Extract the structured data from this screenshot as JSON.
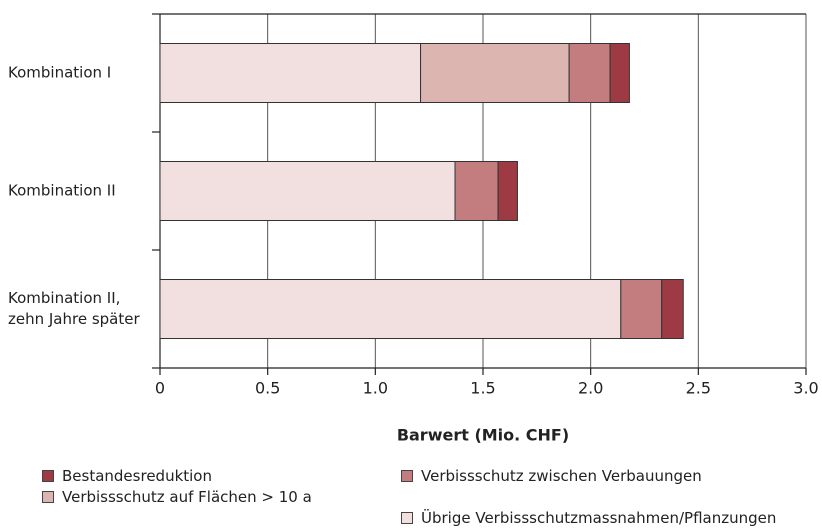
{
  "chart_data": {
    "type": "stacked-barh",
    "categories": [
      "Kombination I",
      "Kombination II",
      "Kombination II,\nzehn Jahre später"
    ],
    "series": [
      {
        "name": "Übrige Verbissschutzmassnahmen/Pflanzungen\nfür sofortige Wirkung",
        "color": "#f2dfdf",
        "values": [
          1.21,
          1.37,
          2.14
        ]
      },
      {
        "name": "Verbissschutz auf Flächen > 10 a",
        "color": "#dcb5b1",
        "values": [
          0.69,
          0,
          0
        ]
      },
      {
        "name": "Verbissschutz zwischen Verbauungen",
        "color": "#c47d7e",
        "values": [
          0.19,
          0.2,
          0.19
        ]
      },
      {
        "name": "Bestandesreduktion",
        "color": "#9e3a44",
        "values": [
          0.09,
          0.09,
          0.1
        ]
      }
    ],
    "xlabel": "Barwert (Mio. CHF)",
    "xlim": [
      0,
      3
    ],
    "xticks": [
      0,
      0.5,
      {
        "value": 1,
        "label": "1.0"
      },
      1.5,
      {
        "value": 2,
        "label": "2.0"
      },
      2.5,
      {
        "value": 3,
        "label": "3.0"
      }
    ],
    "grid": true
  }
}
